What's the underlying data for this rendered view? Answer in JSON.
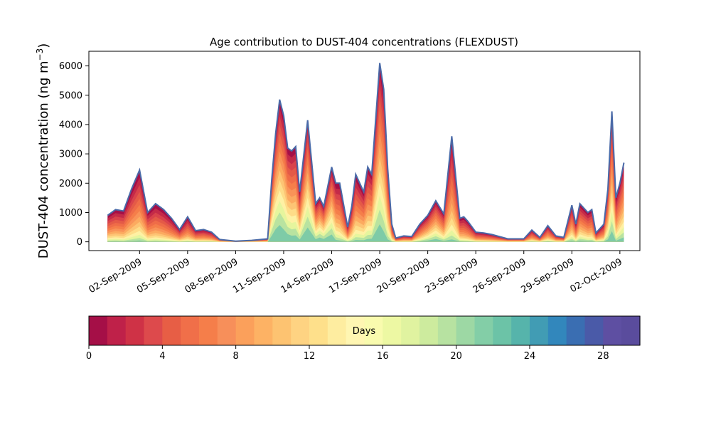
{
  "chart_data": {
    "type": "area",
    "title": "Age contribution to DUST-404 concentrations (FLEXDUST)",
    "ylabel": "DUST-404 concentration (ng m",
    "ylabel_sup": "−3",
    "ylabel_close": ")",
    "xlabel": "",
    "ylim": [
      -300,
      6500
    ],
    "yticks": [
      0,
      1000,
      2000,
      3000,
      4000,
      5000,
      6000
    ],
    "xlim": [
      "2009-08-29T20:00",
      "2009-10-03T06:00"
    ],
    "xticks": [
      "02-Sep-2009",
      "05-Sep-2009",
      "08-Sep-2009",
      "11-Sep-2009",
      "14-Sep-2009",
      "17-Sep-2009",
      "20-Sep-2009",
      "23-Sep-2009",
      "26-Sep-2009",
      "29-Sep-2009",
      "02-Oct-2009"
    ],
    "total_line_color": "#4a6aa8",
    "series_note": "stacked contributions by particle age (days 0-30), total outline shown",
    "x": [
      "2009-08-31T00:00",
      "2009-08-31T12:00",
      "2009-09-01T00:00",
      "2009-09-01T12:00",
      "2009-09-02T00:00",
      "2009-09-02T12:00",
      "2009-09-03T00:00",
      "2009-09-03T12:00",
      "2009-09-04T00:00",
      "2009-09-04T12:00",
      "2009-09-05T00:00",
      "2009-09-05T12:00",
      "2009-09-06T00:00",
      "2009-09-06T12:00",
      "2009-09-07T00:00",
      "2009-09-08T00:00",
      "2009-09-09T00:00",
      "2009-09-10T00:00",
      "2009-09-10T06:00",
      "2009-09-10T12:00",
      "2009-09-10T18:00",
      "2009-09-11T00:00",
      "2009-09-11T06:00",
      "2009-09-11T12:00",
      "2009-09-11T18:00",
      "2009-09-12T00:00",
      "2009-09-12T12:00",
      "2009-09-13T00:00",
      "2009-09-13T06:00",
      "2009-09-13T12:00",
      "2009-09-14T00:00",
      "2009-09-14T06:00",
      "2009-09-14T12:00",
      "2009-09-15T00:00",
      "2009-09-15T06:00",
      "2009-09-15T12:00",
      "2009-09-16T00:00",
      "2009-09-16T06:00",
      "2009-09-16T12:00",
      "2009-09-17T00:00",
      "2009-09-17T06:00",
      "2009-09-17T12:00",
      "2009-09-17T18:00",
      "2009-09-18T00:00",
      "2009-09-18T12:00",
      "2009-09-19T00:00",
      "2009-09-19T12:00",
      "2009-09-20T00:00",
      "2009-09-20T12:00",
      "2009-09-21T00:00",
      "2009-09-21T12:00",
      "2009-09-22T00:00",
      "2009-09-22T06:00",
      "2009-09-22T12:00",
      "2009-09-23T00:00",
      "2009-09-23T12:00",
      "2009-09-24T00:00",
      "2009-09-25T00:00",
      "2009-09-26T00:00",
      "2009-09-26T12:00",
      "2009-09-27T00:00",
      "2009-09-27T12:00",
      "2009-09-28T00:00",
      "2009-09-28T12:00",
      "2009-09-29T00:00",
      "2009-09-29T06:00",
      "2009-09-29T12:00",
      "2009-09-30T00:00",
      "2009-09-30T06:00",
      "2009-09-30T12:00",
      "2009-10-01T00:00",
      "2009-10-01T06:00",
      "2009-10-01T12:00",
      "2009-10-01T18:00",
      "2009-10-02T00:00",
      "2009-10-02T06:00"
    ],
    "total": [
      900,
      1100,
      1050,
      1800,
      2450,
      1000,
      1300,
      1100,
      800,
      420,
      850,
      380,
      420,
      330,
      80,
      20,
      50,
      100,
      2100,
      3700,
      4850,
      4300,
      3200,
      3100,
      3250,
      1700,
      4150,
      1300,
      1500,
      1200,
      2550,
      2000,
      2000,
      500,
      1200,
      2300,
      1700,
      2550,
      2300,
      6100,
      5200,
      2500,
      600,
      130,
      200,
      180,
      600,
      900,
      1400,
      950,
      3600,
      800,
      850,
      700,
      330,
      300,
      250,
      100,
      100,
      400,
      150,
      550,
      200,
      150,
      1250,
      600,
      1300,
      1000,
      1100,
      300,
      600,
      1800,
      4450,
      1500,
      2000,
      2700
    ],
    "young_share": [
      0.3,
      0.3,
      0.25,
      0.3,
      0.35,
      0.2,
      0.2,
      0.15,
      0.1,
      0.1,
      0.1,
      0.1,
      0.1,
      0.1,
      0.1,
      0.1,
      0.1,
      0.1,
      0.8,
      0.85,
      0.85,
      0.8,
      0.75,
      0.7,
      0.7,
      0.6,
      0.85,
      0.7,
      0.8,
      0.75,
      0.8,
      0.5,
      0.4,
      0.3,
      0.35,
      0.45,
      0.5,
      0.55,
      0.6,
      0.8,
      0.7,
      0.5,
      0.3,
      0.1,
      0.15,
      0.2,
      0.4,
      0.6,
      0.7,
      0.5,
      0.4,
      0.3,
      0.2,
      0.2,
      0.1,
      0.1,
      0.1,
      0.1,
      0.15,
      0.2,
      0.15,
      0.3,
      0.2,
      0.2,
      0.5,
      0.3,
      0.5,
      0.4,
      0.4,
      0.2,
      0.3,
      0.6,
      0.75,
      0.4,
      0.6,
      0.65
    ]
  },
  "colorbar": {
    "label": "Days",
    "ticks": [
      0,
      4,
      8,
      12,
      16,
      20,
      24,
      28
    ],
    "range": [
      0,
      30
    ],
    "colors": [
      "#a50f47",
      "#bf2149",
      "#cf3246",
      "#dd4a4c",
      "#e75e45",
      "#f06f49",
      "#f57e4a",
      "#f78f5a",
      "#fba05b",
      "#fdb264",
      "#fdc371",
      "#fed382",
      "#fee08b",
      "#feeda0",
      "#fff6b2",
      "#f9fbae",
      "#edf8a3",
      "#e0f3a0",
      "#cdeb9e",
      "#b7e2a1",
      "#9dd8a4",
      "#83cea7",
      "#6cc3a7",
      "#56b4ab",
      "#419cb4",
      "#3287bc",
      "#3a6eb2",
      "#4a5aa8",
      "#5e4fa2",
      "#5a4c9d"
    ]
  }
}
